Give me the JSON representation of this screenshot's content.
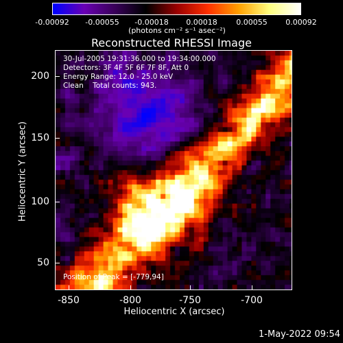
{
  "colorbar": {
    "tick_labels": [
      "-0.00092",
      "-0.00055",
      "-0.00018",
      "0.00018",
      "0.00055",
      "0.00092"
    ],
    "units": "(photons cm⁻² s⁻¹ asec⁻²)",
    "range": [
      -0.00092,
      0.00092
    ],
    "colors": [
      "#0000ff",
      "#6a00b4",
      "#3a005a",
      "#000000",
      "#9a0000",
      "#ff3000",
      "#ffa000",
      "#ffff80",
      "#ffffff"
    ]
  },
  "title": "Reconstructed RHESSI Image",
  "info": {
    "time": "30-Jul-2005 19:31:36.000 to 19:34:00.000",
    "detectors": "Detectors: 3F 4F 5F 6F 7F 8F, Att 0",
    "energy": "Energy Range: 12.0 - 25.0 keV",
    "clean": "Clean    Total counts: 943."
  },
  "peak": "Position of Peak = [-779,94]",
  "axes": {
    "xlabel": "Heliocentric X (arcsec)",
    "ylabel": "Heliocentric Y (arcsec)",
    "xticks": [
      "-850",
      "-800",
      "-750",
      "-700"
    ],
    "yticks": [
      "200",
      "150",
      "100",
      "50"
    ],
    "xrange": [
      -864,
      -672
    ],
    "yrange": [
      26,
      220
    ]
  },
  "timestamp": "1-May-2022 09:54",
  "image": {
    "type": "heatmap",
    "peak_position": [
      -779,
      94
    ]
  }
}
